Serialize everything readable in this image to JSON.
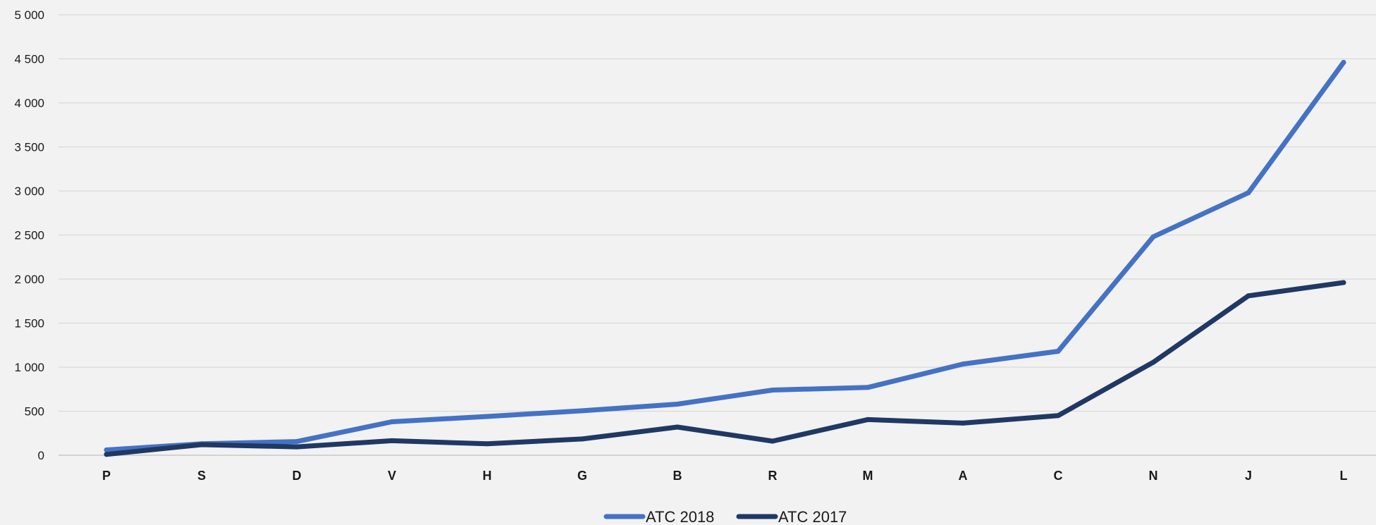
{
  "chart_data": {
    "type": "line",
    "categories": [
      "P",
      "S",
      "D",
      "V",
      "H",
      "G",
      "B",
      "R",
      "M",
      "A",
      "C",
      "N",
      "J",
      "L"
    ],
    "series": [
      {
        "name": "ATC 2018",
        "color": "#4472c4",
        "values": [
          60,
          130,
          155,
          380,
          440,
          505,
          580,
          740,
          770,
          1035,
          1180,
          2480,
          2980,
          4460
        ]
      },
      {
        "name": "ATC 2017",
        "color": "#203864",
        "values": [
          10,
          120,
          95,
          165,
          130,
          185,
          320,
          160,
          405,
          365,
          450,
          1055,
          1810,
          1960
        ]
      }
    ],
    "ylim": [
      0,
      5000
    ],
    "yticks": [
      0,
      500,
      1000,
      1500,
      2000,
      2500,
      3000,
      3500,
      4000,
      4500,
      5000
    ],
    "ytick_labels": [
      "0",
      "500",
      "1 000",
      "1 500",
      "2 000",
      "2 500",
      "3 000",
      "3 500",
      "4 000",
      "4 500",
      "5 000"
    ],
    "grid": true,
    "legend_position": "bottom",
    "title": "",
    "xlabel": "",
    "ylabel": ""
  }
}
